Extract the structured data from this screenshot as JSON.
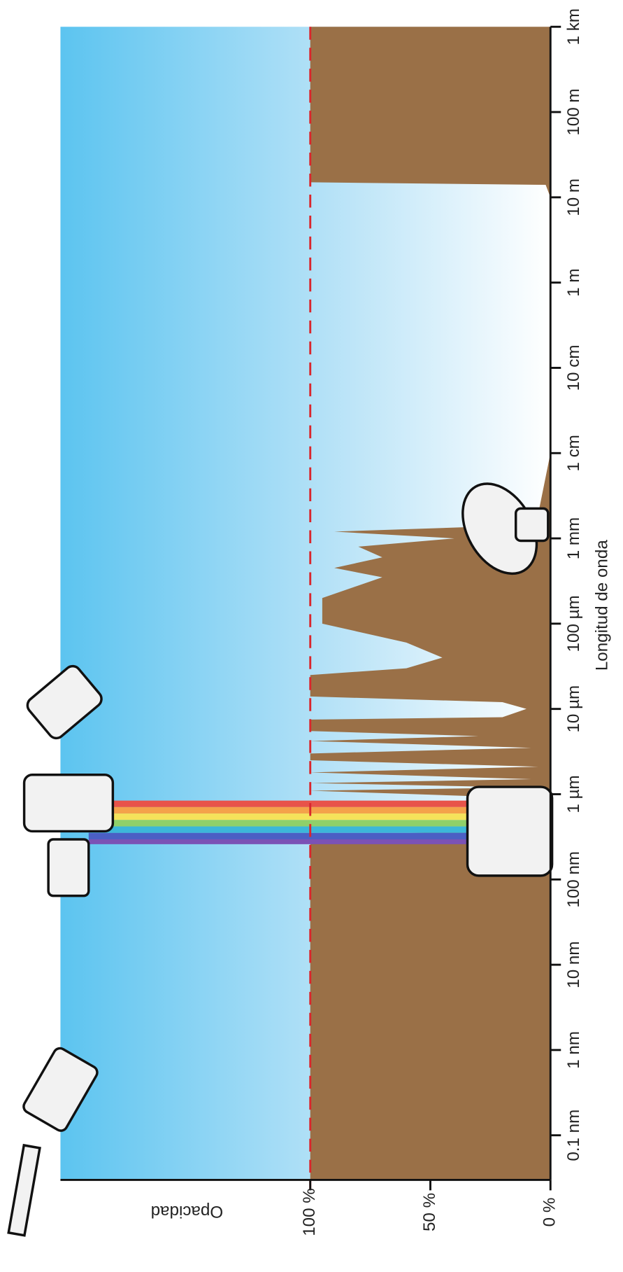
{
  "chart_data": {
    "type": "area",
    "x_label": "Longitud de onda",
    "y_label": "Opacidad",
    "log_x": true,
    "xlim": [
      3e-11,
      1000
    ],
    "xticks": [
      {
        "value": 1e-10,
        "label": "0.1 nm"
      },
      {
        "value": 1e-09,
        "label": "1 nm"
      },
      {
        "value": 1e-08,
        "label": "10 nm"
      },
      {
        "value": 1e-07,
        "label": "100 nm"
      },
      {
        "value": 1e-06,
        "label": "1 µm"
      },
      {
        "value": 1e-05,
        "label": "10 µm"
      },
      {
        "value": 0.0001,
        "label": "100 µm"
      },
      {
        "value": 0.001,
        "label": "1 mm"
      },
      {
        "value": 0.01,
        "label": "1 cm"
      },
      {
        "value": 0.1,
        "label": "10 cm"
      },
      {
        "value": 1,
        "label": "1 m"
      },
      {
        "value": 10,
        "label": "10 m"
      },
      {
        "value": 100,
        "label": "100 m"
      },
      {
        "value": 1000,
        "label": "1 km"
      }
    ],
    "ylim": [
      0,
      204
    ],
    "yticks": [
      {
        "value": 0,
        "label": "0 %"
      },
      {
        "value": 50,
        "label": "50 %"
      },
      {
        "value": 100,
        "label": "100 %"
      }
    ],
    "reference_line": {
      "value": 100,
      "color": "#d9262c"
    },
    "background_color": "#5cc4f0",
    "series": [
      {
        "color": "#9a7047",
        "x": [
          3e-11,
          3e-07,
          3.3e-07,
          3.6e-07,
          4e-07,
          7e-07,
          9e-07,
          1.1e-06,
          1.2e-06,
          1.35e-06,
          1.5e-06,
          1.8e-06,
          2.1e-06,
          2.5e-06,
          3e-06,
          3.5e-06,
          4.2e-06,
          4.8e-06,
          5.5e-06,
          7.5e-06,
          8e-06,
          1e-05,
          1.2e-05,
          1.4e-05,
          2.5e-05,
          3e-05,
          4e-05,
          6e-05,
          0.0001,
          0.0002,
          0.00035,
          0.00045,
          0.0006,
          0.0008,
          0.001,
          0.0012,
          0.0014,
          0.002,
          0.01,
          10,
          14,
          15,
          1000
        ],
        "values": [
          100,
          100,
          98,
          40,
          5,
          3,
          8,
          100,
          10,
          100,
          8,
          100,
          5,
          100,
          100,
          8,
          100,
          30,
          100,
          100,
          20,
          10,
          20,
          100,
          100,
          60,
          45,
          60,
          95,
          95,
          70,
          90,
          70,
          80,
          40,
          90,
          20,
          5,
          0,
          0,
          2,
          100,
          100
        ]
      }
    ]
  }
}
